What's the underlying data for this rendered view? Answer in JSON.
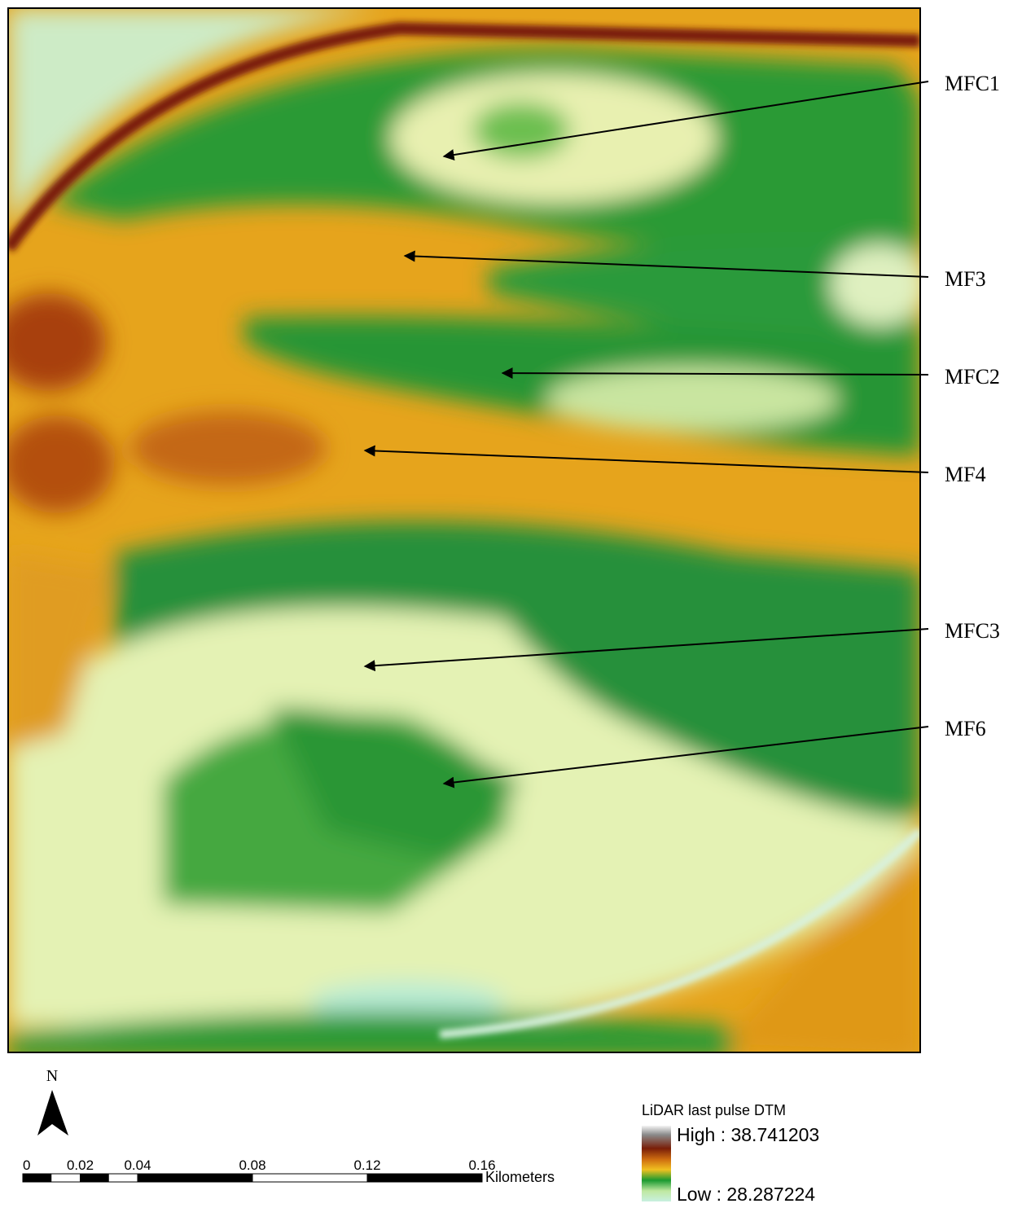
{
  "map": {
    "annotations": [
      "MFC1",
      "MF3",
      "MFC2",
      "MF4",
      "MFC3",
      "MF6"
    ],
    "north_arrow": "N",
    "scale_bar": {
      "ticks": [
        0,
        0.02,
        0.04,
        0.08,
        0.12,
        0.16
      ],
      "unit": "Kilometers"
    },
    "legend": {
      "title": "LiDAR last pulse DTM",
      "high": "High : 38.741203",
      "low": "Low : 28.287224"
    }
  }
}
